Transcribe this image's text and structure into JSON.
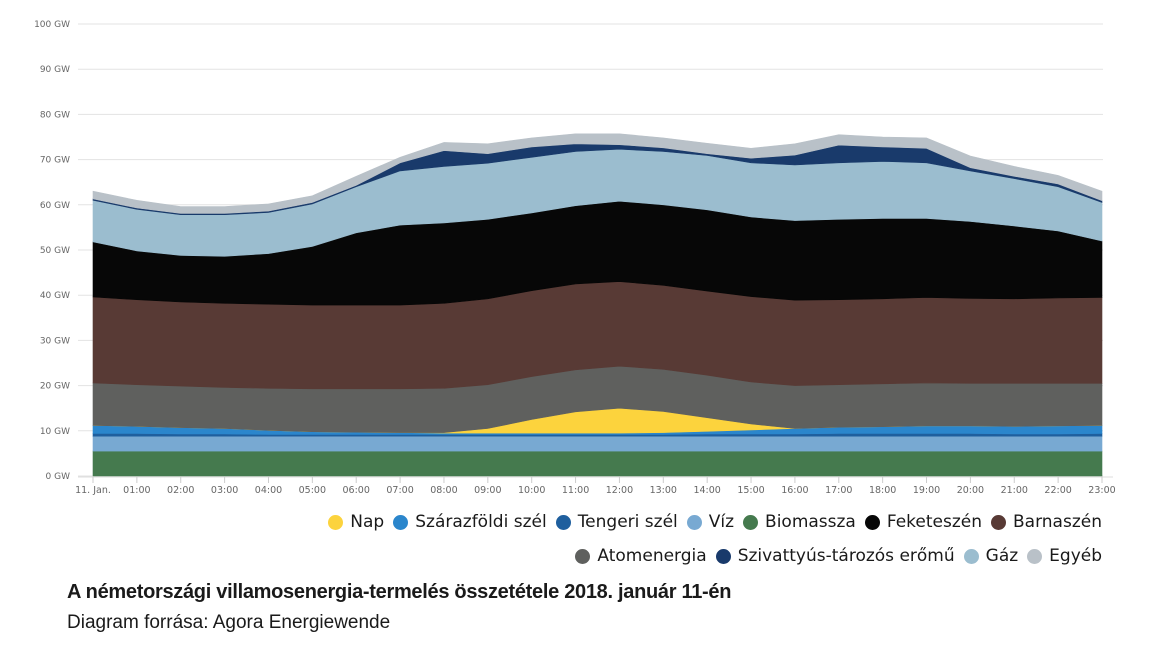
{
  "chart_data": {
    "type": "area",
    "stacked": true,
    "title": "A németországi villamosenergia-termelés összetétele 2018. január 11-én",
    "subtitle": "Diagram forrása: Agora Energiewende",
    "xlabel": "",
    "ylabel": "",
    "ylim": [
      0,
      100
    ],
    "grid": true,
    "legend_position": "bottom-right",
    "yticks": [
      "0 GW",
      "10 GW",
      "20 GW",
      "30 GW",
      "40 GW",
      "50 GW",
      "60 GW",
      "70 GW",
      "80 GW",
      "90 GW",
      "100 GW"
    ],
    "ytick_values": [
      0,
      10,
      20,
      30,
      40,
      50,
      60,
      70,
      80,
      90,
      100
    ],
    "categories": [
      "11. Jan.",
      "01:00",
      "02:00",
      "03:00",
      "04:00",
      "05:00",
      "06:00",
      "07:00",
      "08:00",
      "09:00",
      "10:00",
      "11:00",
      "12:00",
      "13:00",
      "14:00",
      "15:00",
      "16:00",
      "17:00",
      "18:00",
      "19:00",
      "20:00",
      "21:00",
      "22:00",
      "23:00"
    ],
    "unit": "GW",
    "series": [
      {
        "name": "Biomassza",
        "color": "#457a4e",
        "values": [
          5.5,
          5.5,
          5.5,
          5.5,
          5.5,
          5.5,
          5.5,
          5.5,
          5.5,
          5.5,
          5.5,
          5.5,
          5.5,
          5.5,
          5.5,
          5.5,
          5.5,
          5.5,
          5.5,
          5.5,
          5.5,
          5.5,
          5.5,
          5.5
        ]
      },
      {
        "name": "Víz",
        "color": "#78a9d2",
        "values": [
          3.3,
          3.3,
          3.3,
          3.3,
          3.3,
          3.3,
          3.3,
          3.3,
          3.3,
          3.3,
          3.3,
          3.3,
          3.3,
          3.3,
          3.3,
          3.3,
          3.3,
          3.3,
          3.3,
          3.3,
          3.3,
          3.3,
          3.3,
          3.3
        ]
      },
      {
        "name": "Tengeri szél",
        "color": "#1f5f9e",
        "values": [
          0.6,
          0.6,
          0.5,
          0.5,
          0.4,
          0.4,
          0.4,
          0.4,
          0.4,
          0.4,
          0.4,
          0.4,
          0.4,
          0.4,
          0.5,
          0.5,
          0.5,
          0.6,
          0.6,
          0.6,
          0.6,
          0.5,
          0.5,
          0.6
        ]
      },
      {
        "name": "Szárazföldi szél",
        "color": "#2b86cc",
        "values": [
          1.8,
          1.6,
          1.4,
          1.2,
          0.9,
          0.6,
          0.5,
          0.4,
          0.3,
          0.3,
          0.3,
          0.3,
          0.3,
          0.4,
          0.6,
          0.9,
          1.2,
          1.4,
          1.5,
          1.7,
          1.7,
          1.7,
          1.8,
          1.8
        ]
      },
      {
        "name": "Nap",
        "color": "#fcd33d",
        "values": [
          0,
          0,
          0,
          0,
          0,
          0,
          0,
          0,
          0.1,
          1.0,
          3.0,
          4.7,
          5.5,
          4.7,
          3.0,
          1.3,
          0,
          0,
          0,
          0,
          0,
          0,
          0,
          0
        ]
      },
      {
        "name": "Atomenergia",
        "color": "#5f605e",
        "values": [
          9.4,
          9.2,
          9.2,
          9.1,
          9.3,
          9.5,
          9.6,
          9.7,
          9.8,
          9.7,
          9.5,
          9.3,
          9.3,
          9.3,
          9.4,
          9.3,
          9.5,
          9.4,
          9.5,
          9.5,
          9.4,
          9.5,
          9.4,
          9.3
        ]
      },
      {
        "name": "Barnaszén",
        "color": "#583a35",
        "values": [
          19.0,
          18.8,
          18.6,
          18.6,
          18.6,
          18.5,
          18.5,
          18.5,
          18.8,
          19.0,
          19.0,
          19.0,
          18.7,
          18.6,
          18.6,
          18.9,
          18.9,
          18.8,
          18.8,
          18.9,
          18.8,
          18.7,
          18.9,
          19.0
        ]
      },
      {
        "name": "Feketeszén",
        "color": "#070707",
        "values": [
          12.2,
          10.8,
          10.3,
          10.4,
          11.2,
          13.0,
          16.0,
          17.7,
          17.8,
          17.6,
          17.2,
          17.3,
          17.8,
          17.8,
          18.0,
          17.6,
          17.6,
          17.8,
          17.8,
          17.5,
          17.0,
          16.1,
          14.8,
          12.5
        ]
      },
      {
        "name": "Gáz",
        "color": "#9bbdcf",
        "values": [
          9.2,
          9.2,
          9.0,
          9.2,
          9.1,
          9.4,
          10.2,
          12.0,
          12.5,
          12.4,
          12.3,
          12.0,
          11.5,
          11.8,
          12.0,
          12.0,
          12.3,
          12.5,
          12.6,
          12.3,
          11.2,
          10.5,
          9.8,
          8.5
        ]
      },
      {
        "name": "Szivattyús-tározós erőmű",
        "color": "#193a6b",
        "values": [
          0.3,
          0.3,
          0.3,
          0.3,
          0.3,
          0.3,
          0.3,
          1.8,
          3.5,
          2.1,
          2.3,
          1.7,
          1.0,
          0.8,
          0.4,
          1.0,
          2.2,
          3.9,
          3.2,
          3.2,
          0.7,
          0.5,
          0.6,
          0.4
        ]
      },
      {
        "name": "Egyéb",
        "color": "#b9c1c8",
        "values": [
          1.7,
          1.7,
          1.5,
          1.5,
          1.6,
          1.5,
          2.0,
          1.2,
          1.8,
          2.2,
          2.0,
          2.2,
          2.4,
          2.2,
          2.3,
          2.2,
          2.5,
          2.3,
          2.2,
          2.3,
          2.6,
          2.2,
          1.9,
          2.1
        ]
      }
    ],
    "legend_rows": [
      [
        "Nap",
        "Szárazföldi szél",
        "Tengeri szél",
        "Víz",
        "Biomassza",
        "Feketeszén",
        "Barnaszén"
      ],
      [
        "Atomenergia",
        "Szivattyús-tározós erőmű",
        "Gáz",
        "Egyéb"
      ]
    ]
  },
  "colors": {
    "gridline": "#e3e3e3",
    "tick_text": "#666666",
    "caption_text": "#1a1a1a"
  }
}
